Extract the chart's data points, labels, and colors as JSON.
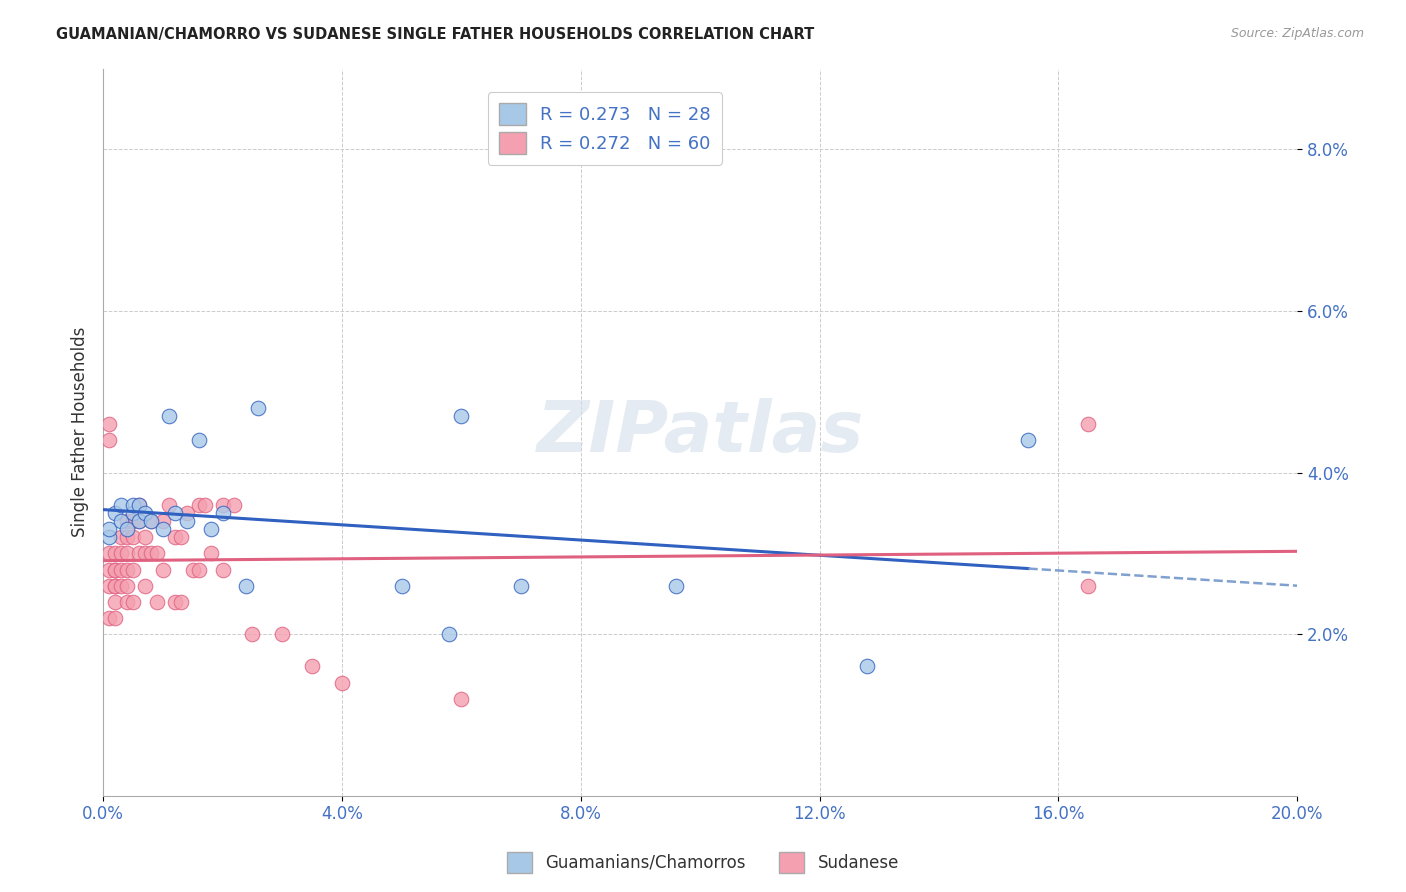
{
  "title": "GUAMANIAN/CHAMORRO VS SUDANESE SINGLE FATHER HOUSEHOLDS CORRELATION CHART",
  "source": "Source: ZipAtlas.com",
  "ylabel": "Single Father Households",
  "xlim": [
    0.0,
    0.2
  ],
  "ylim": [
    0.0,
    0.09
  ],
  "xticks": [
    0.0,
    0.04,
    0.08,
    0.12,
    0.16,
    0.2
  ],
  "yticks": [
    0.02,
    0.04,
    0.06,
    0.08
  ],
  "xticklabels": [
    "0.0%",
    "4.0%",
    "8.0%",
    "12.0%",
    "16.0%",
    "20.0%"
  ],
  "yticklabels": [
    "2.0%",
    "4.0%",
    "6.0%",
    "8.0%"
  ],
  "color_blue": "#a8c8e8",
  "color_pink": "#f4a0b0",
  "line_blue": "#3060c0",
  "line_pink": "#e06080",
  "line_blue_dash": "#80a0d0",
  "watermark": "ZIPatlas",
  "guamanian_r": 0.273,
  "guamanian_n": 28,
  "sudanese_r": 0.272,
  "sudanese_n": 60,
  "bg_color": "#ffffff",
  "grid_color": "#cccccc",
  "guamanian_x": [
    0.001,
    0.001,
    0.002,
    0.003,
    0.003,
    0.004,
    0.005,
    0.005,
    0.006,
    0.006,
    0.007,
    0.008,
    0.01,
    0.011,
    0.012,
    0.014,
    0.016,
    0.018,
    0.02,
    0.024,
    0.026,
    0.05,
    0.058,
    0.06,
    0.07,
    0.096,
    0.128,
    0.155
  ],
  "guamanian_y": [
    0.032,
    0.033,
    0.035,
    0.034,
    0.036,
    0.033,
    0.035,
    0.036,
    0.034,
    0.036,
    0.035,
    0.034,
    0.033,
    0.047,
    0.035,
    0.034,
    0.044,
    0.033,
    0.035,
    0.026,
    0.048,
    0.026,
    0.02,
    0.047,
    0.026,
    0.026,
    0.016,
    0.044
  ],
  "sudanese_x": [
    0.001,
    0.001,
    0.001,
    0.001,
    0.001,
    0.001,
    0.002,
    0.002,
    0.002,
    0.002,
    0.002,
    0.002,
    0.002,
    0.003,
    0.003,
    0.003,
    0.003,
    0.004,
    0.004,
    0.004,
    0.004,
    0.004,
    0.004,
    0.005,
    0.005,
    0.005,
    0.005,
    0.006,
    0.006,
    0.006,
    0.007,
    0.007,
    0.007,
    0.008,
    0.008,
    0.009,
    0.009,
    0.01,
    0.01,
    0.011,
    0.012,
    0.012,
    0.013,
    0.013,
    0.014,
    0.015,
    0.016,
    0.016,
    0.017,
    0.018,
    0.02,
    0.02,
    0.022,
    0.025,
    0.03,
    0.035,
    0.04,
    0.06,
    0.165,
    0.165
  ],
  "sudanese_y": [
    0.046,
    0.044,
    0.03,
    0.028,
    0.026,
    0.022,
    0.03,
    0.028,
    0.028,
    0.026,
    0.026,
    0.024,
    0.022,
    0.032,
    0.03,
    0.028,
    0.026,
    0.034,
    0.032,
    0.03,
    0.028,
    0.026,
    0.024,
    0.034,
    0.032,
    0.028,
    0.024,
    0.036,
    0.034,
    0.03,
    0.032,
    0.03,
    0.026,
    0.034,
    0.03,
    0.03,
    0.024,
    0.034,
    0.028,
    0.036,
    0.032,
    0.024,
    0.032,
    0.024,
    0.035,
    0.028,
    0.036,
    0.028,
    0.036,
    0.03,
    0.036,
    0.028,
    0.036,
    0.02,
    0.02,
    0.016,
    0.014,
    0.012,
    0.046,
    0.026
  ]
}
